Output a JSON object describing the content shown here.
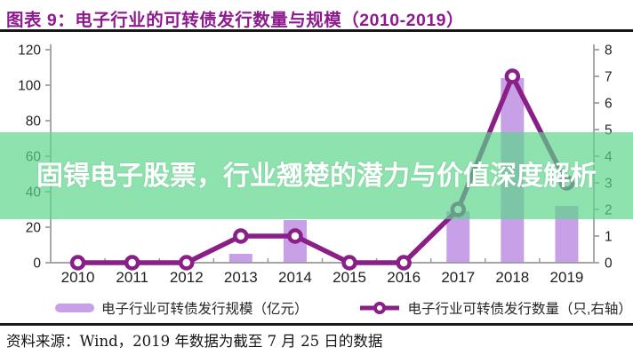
{
  "header": {
    "title": "图表 9：电子行业的可转债发行数量与规模（2010-2019）"
  },
  "overlay": {
    "text": "固锝电子股票，行业翘楚的潜力与价值深度解析"
  },
  "footer": {
    "source": "资料来源：Wind，2019 年数据为截至 7 月 25 日的数据"
  },
  "colors": {
    "title_text": "#8e1b8e",
    "bar": "#c7a0e8",
    "line": "#8a1f87",
    "marker_fill": "#ffffff",
    "axis": "#9a9a9a",
    "tick_label": "#1f1f1f",
    "overlay_bg": "#5cd58a",
    "overlay_alpha": 0.69,
    "watermark_text": "#ffffff"
  },
  "chart_data": {
    "type": "combo-bar-line",
    "title": "电子行业的可转债发行数量与规模（2010-2019）",
    "categories": [
      "2010",
      "2011",
      "2012",
      "2013",
      "2014",
      "2015",
      "2016",
      "2017",
      "2018",
      "2019"
    ],
    "series": [
      {
        "name": "电子行业可转债发行规模（亿元）",
        "type": "bar",
        "axis": "left",
        "values": [
          0,
          0,
          0,
          5,
          24,
          0,
          0,
          29,
          104,
          32
        ]
      },
      {
        "name": "电子行业可转债发行数量（只,右轴）",
        "type": "line",
        "axis": "right",
        "values": [
          0,
          0,
          0,
          1,
          1,
          0,
          0,
          2,
          7,
          3
        ]
      }
    ],
    "left_axis": {
      "min": 0,
      "max": 120,
      "step": 20
    },
    "right_axis": {
      "min": 0,
      "max": 8,
      "step": 1
    },
    "grid": false,
    "legend_position": "bottom",
    "xlabel": "",
    "ylabel_left": "亿元",
    "ylabel_right": "只"
  }
}
